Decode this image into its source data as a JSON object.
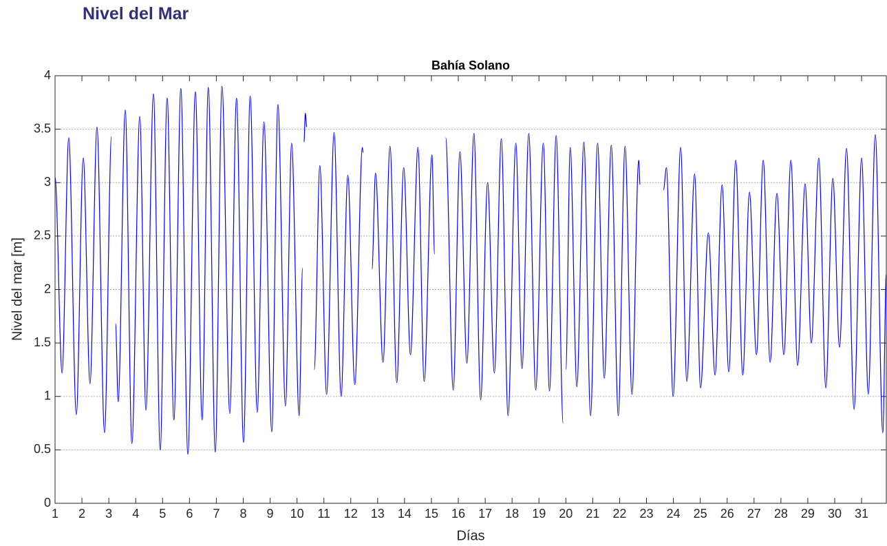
{
  "header": {
    "title": "Nivel del Mar"
  },
  "chart_data": {
    "type": "line",
    "title": "Bahía Solano",
    "x_label": "Días",
    "y_label": "Nivel del mar [m]",
    "xlim": [
      1,
      31.92
    ],
    "ylim": [
      0,
      4
    ],
    "xticks": [
      1,
      2,
      3,
      4,
      5,
      6,
      7,
      8,
      9,
      10,
      11,
      12,
      13,
      14,
      15,
      16,
      17,
      18,
      19,
      20,
      21,
      22,
      23,
      24,
      25,
      26,
      27,
      28,
      29,
      30,
      31
    ],
    "yticks": [
      0,
      0.5,
      1,
      1.5,
      2,
      2.5,
      3,
      3.5,
      4
    ],
    "grid": "y",
    "color": "#0000ff",
    "x": [
      1.0,
      1.26,
      1.51,
      1.79,
      2.05,
      2.3,
      2.56,
      2.84,
      3.1,
      3.17,
      3.25,
      3.35,
      3.61,
      3.86,
      4.15,
      4.38,
      4.66,
      4.91,
      5.17,
      5.42,
      5.68,
      5.94,
      6.22,
      6.47,
      6.7,
      6.96,
      7.21,
      7.5,
      7.75,
      8.01,
      8.26,
      8.52,
      8.77,
      9.06,
      9.29,
      9.57,
      9.8,
      10.08,
      10.21,
      10.23,
      10.26,
      10.31,
      10.36,
      10.5,
      10.64,
      10.85,
      11.1,
      11.38,
      11.64,
      11.89,
      12.15,
      12.43,
      12.46,
      12.62,
      12.79,
      12.92,
      13.2,
      13.46,
      13.71,
      13.97,
      14.22,
      14.5,
      14.73,
      15.02,
      15.12,
      15.3,
      15.53,
      15.81,
      16.06,
      16.32,
      16.58,
      16.83,
      17.09,
      17.34,
      17.6,
      17.85,
      18.14,
      18.37,
      18.62,
      18.88,
      19.16,
      19.39,
      19.64,
      19.9,
      19.95,
      20.0,
      20.16,
      20.41,
      20.67,
      20.92,
      21.18,
      21.43,
      21.69,
      21.95,
      22.2,
      22.46,
      22.71,
      22.76,
      23.2,
      23.63,
      23.74,
      23.99,
      24.27,
      24.5,
      24.79,
      25.01,
      25.3,
      25.55,
      25.81,
      26.06,
      26.32,
      26.58,
      26.83,
      27.09,
      27.34,
      27.6,
      27.85,
      28.11,
      28.37,
      28.62,
      28.9,
      29.13,
      29.41,
      29.67,
      29.93,
      30.18,
      30.44,
      30.72,
      31.0,
      31.25,
      31.51,
      31.79,
      31.92
    ],
    "values": [
      3.05,
      1.22,
      3.42,
      0.83,
      3.23,
      1.12,
      3.52,
      0.66,
      3.43,
      null,
      1.68,
      0.95,
      3.68,
      0.56,
      3.62,
      0.87,
      3.83,
      0.5,
      3.79,
      0.78,
      3.88,
      0.46,
      3.85,
      0.78,
      3.89,
      0.48,
      3.9,
      0.84,
      3.79,
      0.57,
      3.81,
      0.85,
      3.57,
      0.67,
      3.73,
      0.91,
      3.37,
      0.82,
      2.2,
      null,
      3.38,
      3.65,
      3.52,
      null,
      1.25,
      3.16,
      1.02,
      3.47,
      1.0,
      3.07,
      1.11,
      3.33,
      3.28,
      null,
      2.19,
      3.09,
      1.32,
      3.34,
      1.13,
      3.14,
      1.39,
      3.33,
      1.14,
      3.26,
      2.33,
      null,
      3.42,
      1.06,
      3.29,
      1.31,
      3.46,
      0.97,
      3.0,
      1.22,
      3.41,
      0.82,
      3.37,
      1.26,
      3.46,
      1.06,
      3.37,
      1.05,
      3.44,
      0.75,
      null,
      1.25,
      3.33,
      1.09,
      3.38,
      0.82,
      3.37,
      1.17,
      3.35,
      0.82,
      3.34,
      1.02,
      3.21,
      2.98,
      null,
      2.93,
      3.14,
      1.0,
      3.33,
      1.14,
      3.08,
      1.08,
      2.53,
      1.2,
      2.98,
      1.23,
      3.21,
      1.2,
      2.91,
      1.39,
      3.21,
      1.32,
      2.9,
      1.39,
      3.21,
      1.29,
      2.99,
      1.5,
      3.23,
      1.08,
      3.04,
      1.46,
      3.32,
      0.88,
      3.23,
      1.02,
      3.45,
      0.66,
      2.15
    ]
  }
}
